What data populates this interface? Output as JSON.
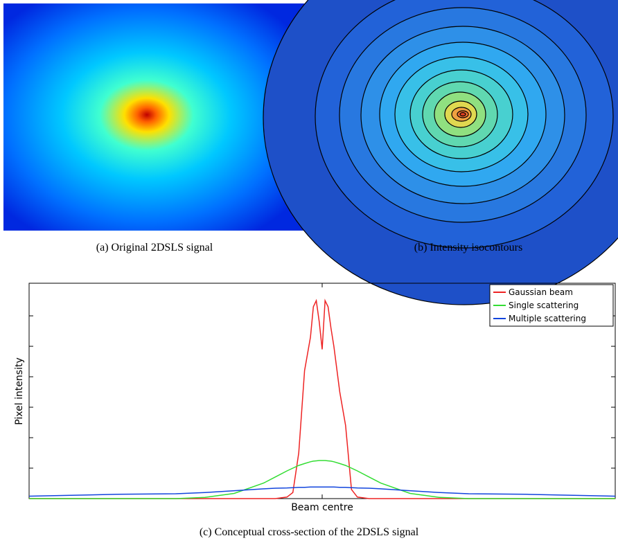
{
  "panels": [
    {
      "caption": "(a) Original 2DSLS signal"
    },
    {
      "caption": "(b) Intensity isocontours"
    }
  ],
  "chart_data": {
    "type": "line",
    "ylabel": "Pixel intensity",
    "caption": "(c) Conceptual cross-section of the 2DSLS signal",
    "x": [
      -1,
      -0.9,
      -0.8,
      -0.7,
      -0.6,
      -0.5,
      -0.4,
      -0.3,
      -0.2,
      -0.16,
      -0.12,
      -0.1,
      -0.08,
      -0.06,
      -0.04,
      -0.03,
      -0.02,
      -0.01,
      0,
      0.01,
      0.02,
      0.03,
      0.04,
      0.06,
      0.08,
      0.1,
      0.12,
      0.16,
      0.2,
      0.3,
      0.4,
      0.5,
      0.6,
      0.7,
      0.8,
      0.9,
      1
    ],
    "series": [
      {
        "name": "Gaussian beam",
        "color": "#ee2222",
        "values": [
          0,
          0,
          0,
          0,
          0,
          0,
          0,
          0,
          0,
          0,
          0.05,
          0.2,
          1.5,
          4.2,
          5.3,
          6.3,
          6.5,
          5.8,
          4.9,
          6.5,
          6.3,
          5.6,
          5.0,
          3.5,
          2.4,
          0.3,
          0.05,
          0,
          0,
          0,
          0,
          0,
          0,
          0,
          0,
          0,
          0
        ]
      },
      {
        "name": "Single scattering",
        "color": "#33dd33",
        "values": [
          0,
          0,
          0,
          0,
          0,
          0,
          0.04,
          0.17,
          0.51,
          0.71,
          0.91,
          1.0,
          1.09,
          1.15,
          1.21,
          1.23,
          1.24,
          1.25,
          1.25,
          1.25,
          1.24,
          1.23,
          1.21,
          1.15,
          1.09,
          1.0,
          0.91,
          0.71,
          0.51,
          0.17,
          0.04,
          0,
          0,
          0,
          0,
          0,
          0
        ]
      },
      {
        "name": "Multiple scattering",
        "color": "#1144dd",
        "values": [
          0.08,
          0.1,
          0.12,
          0.14,
          0.15,
          0.16,
          0.2,
          0.26,
          0.32,
          0.34,
          0.35,
          0.36,
          0.37,
          0.37,
          0.38,
          0.38,
          0.38,
          0.38,
          0.38,
          0.38,
          0.38,
          0.38,
          0.38,
          0.37,
          0.37,
          0.36,
          0.35,
          0.34,
          0.32,
          0.26,
          0.2,
          0.16,
          0.15,
          0.14,
          0.12,
          0.1,
          0.08
        ]
      }
    ],
    "xlim": [
      -1,
      1
    ],
    "xticks": [
      {
        "value": 0,
        "label": "Beam centre"
      }
    ],
    "ylim": [
      0,
      7.07
    ],
    "yticks": [
      1,
      2,
      3,
      4,
      5,
      6
    ],
    "legend": "upper right"
  }
}
